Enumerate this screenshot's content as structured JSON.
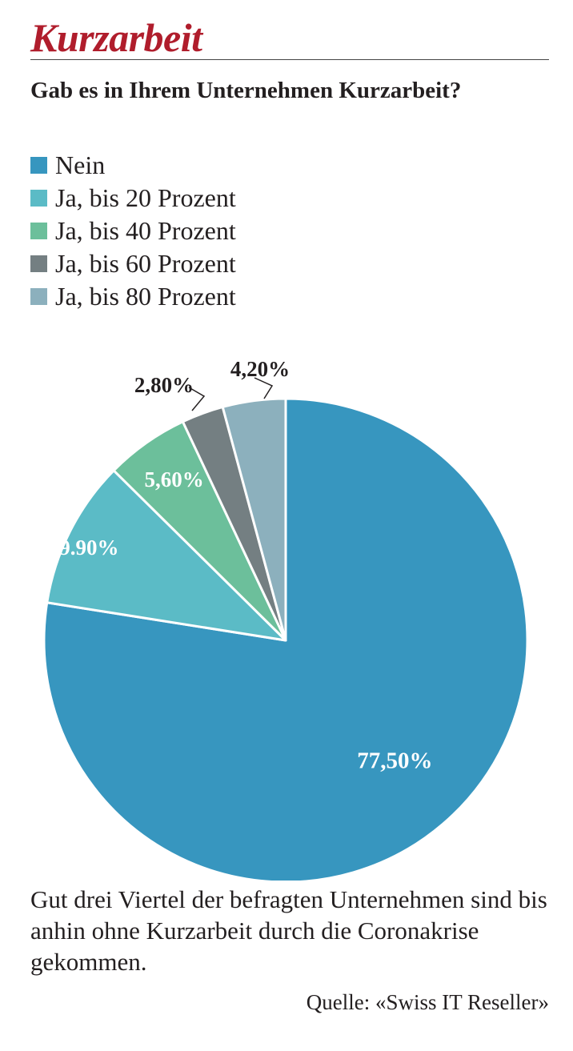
{
  "header": {
    "kicker": "Kurzarbeit",
    "question": "Gab es in Ihrem Unternehmen Kurzarbeit?"
  },
  "colors": {
    "nein": "#3796bf",
    "ja20": "#5bbbc6",
    "ja40": "#6cbf9b",
    "ja60": "#747f82",
    "ja80": "#8cb0bd",
    "kicker": "#b01d2c"
  },
  "chart_data": {
    "type": "pie",
    "slices": [
      {
        "name": "Nein",
        "value": 77.5,
        "label": "77,50%",
        "color": "#3796bf"
      },
      {
        "name": "Ja, bis 20 Prozent",
        "value": 9.9,
        "label": "9.90%",
        "color": "#5bbbc6"
      },
      {
        "name": "Ja, bis 40 Prozent",
        "value": 5.6,
        "label": "5,60%",
        "color": "#6cbf9b"
      },
      {
        "name": "Ja, bis 60 Prozent",
        "value": 2.8,
        "label": "2,80%",
        "color": "#747f82"
      },
      {
        "name": "Ja, bis 80 Prozent",
        "value": 4.2,
        "label": "4,20%",
        "color": "#8cb0bd"
      }
    ],
    "legend_position": "top-left"
  },
  "caption": "Gut drei Viertel der befragten Unternehmen sind bis anhin ohne Kurzarbeit durch die Coronakrise gekommen.",
  "source": "Quelle: «Swiss IT Reseller»"
}
